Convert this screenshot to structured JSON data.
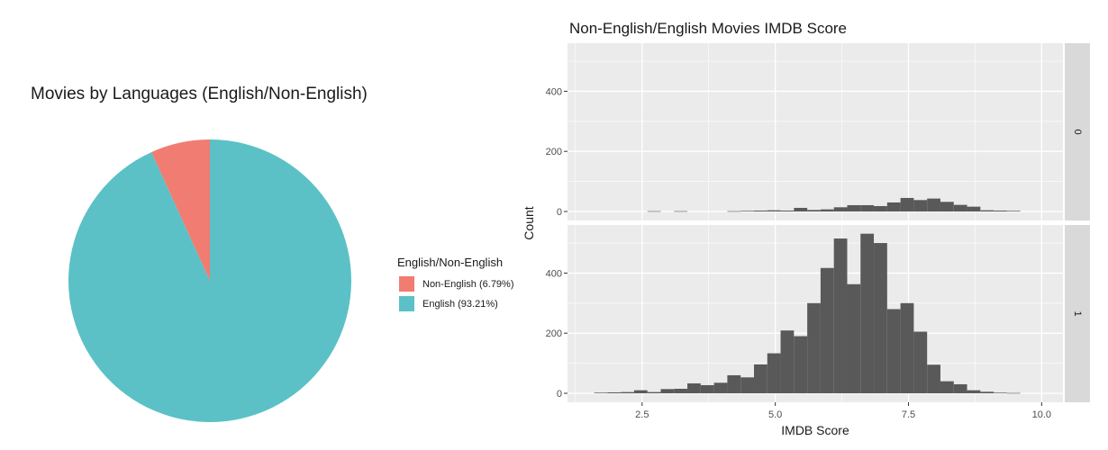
{
  "chart_data": [
    {
      "type": "pie",
      "title": "Movies by Languages (English/Non-English)",
      "legend_title": "English/Non-English",
      "legend_placement": "right",
      "slices": [
        {
          "label": "Non-English (6.79%)",
          "value": 6.79,
          "color": "#F17C72"
        },
        {
          "label": "English (93.21%)",
          "value": 93.21,
          "color": "#5BC1C6"
        }
      ]
    },
    {
      "type": "bar",
      "subtype": "histogram",
      "title": "Non-English/English Movies IMDB Score",
      "xlabel": "IMDB Score",
      "ylabel": "Count",
      "xlim": [
        1.1,
        10.4
      ],
      "ylim": [
        -30,
        560
      ],
      "x_ticks": [
        2.5,
        5.0,
        7.5,
        10.0
      ],
      "x_tick_labels": [
        "2.5",
        "5.0",
        "7.5",
        "10.0"
      ],
      "y_ticks": [
        0,
        200,
        400
      ],
      "y_tick_labels": [
        "0",
        "200",
        "400"
      ],
      "bin_start": 1.6,
      "bin_width": 0.25,
      "grid": true,
      "bar_color": "#595959",
      "panel_background": "#EBEBEB",
      "strip_background": "#D9D9D9",
      "facets": [
        {
          "label": "0",
          "values": [
            0,
            0,
            0,
            0,
            1,
            0,
            1,
            0,
            0,
            0,
            1,
            2,
            3,
            4,
            3,
            12,
            5,
            7,
            14,
            21,
            21,
            18,
            30,
            45,
            38,
            43,
            32,
            22,
            16,
            4,
            3,
            2,
            0,
            0,
            0,
            0
          ]
        },
        {
          "label": "1",
          "values": [
            2,
            3,
            4,
            10,
            4,
            14,
            15,
            33,
            27,
            35,
            60,
            53,
            96,
            133,
            209,
            190,
            300,
            417,
            515,
            363,
            531,
            500,
            280,
            300,
            205,
            95,
            40,
            30,
            10,
            5,
            2,
            1,
            0,
            0,
            0,
            0
          ]
        }
      ]
    }
  ]
}
